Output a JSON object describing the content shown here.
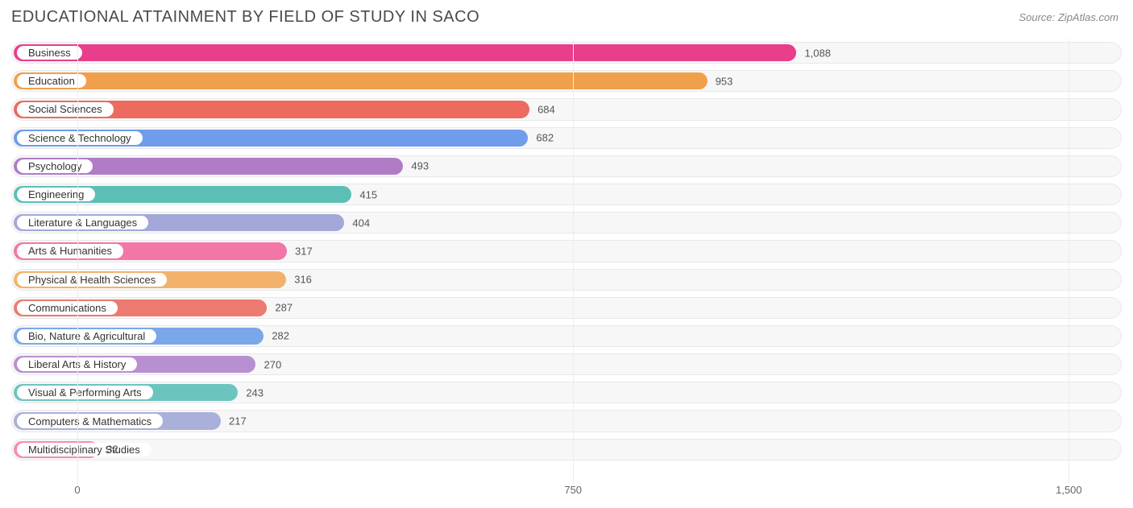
{
  "title": "EDUCATIONAL ATTAINMENT BY FIELD OF STUDY IN SACO",
  "source": "Source: ZipAtlas.com",
  "chart": {
    "type": "bar",
    "orientation": "horizontal",
    "x_min": -100,
    "x_max": 1580,
    "x_ticks": [
      0,
      750,
      1500
    ],
    "x_tick_labels": [
      "0",
      "750",
      "1,500"
    ],
    "track_bg": "#f7f7f7",
    "track_border": "#e8e8e8",
    "value_color": "#555555",
    "title_color": "#4a4a4a",
    "source_color": "#888888",
    "label_fontsize": 13,
    "value_fontsize": 13,
    "title_fontsize": 20,
    "bars": [
      {
        "label": "Business",
        "value": 1088,
        "value_label": "1,088",
        "color": "#e83e8c"
      },
      {
        "label": "Education",
        "value": 953,
        "value_label": "953",
        "color": "#f0a04b"
      },
      {
        "label": "Social Sciences",
        "value": 684,
        "value_label": "684",
        "color": "#ec6a5e"
      },
      {
        "label": "Science & Technology",
        "value": 682,
        "value_label": "682",
        "color": "#6f9ceb"
      },
      {
        "label": "Psychology",
        "value": 493,
        "value_label": "493",
        "color": "#b07cc6"
      },
      {
        "label": "Engineering",
        "value": 415,
        "value_label": "415",
        "color": "#5cbfb6"
      },
      {
        "label": "Literature & Languages",
        "value": 404,
        "value_label": "404",
        "color": "#a3a8d9"
      },
      {
        "label": "Arts & Humanities",
        "value": 317,
        "value_label": "317",
        "color": "#f277a6"
      },
      {
        "label": "Physical & Health Sciences",
        "value": 316,
        "value_label": "316",
        "color": "#f3b26b"
      },
      {
        "label": "Communications",
        "value": 287,
        "value_label": "287",
        "color": "#ec7a70"
      },
      {
        "label": "Bio, Nature & Agricultural",
        "value": 282,
        "value_label": "282",
        "color": "#7aa7e8"
      },
      {
        "label": "Liberal Arts & History",
        "value": 270,
        "value_label": "270",
        "color": "#b88fd0"
      },
      {
        "label": "Visual & Performing Arts",
        "value": 243,
        "value_label": "243",
        "color": "#6cc4bf"
      },
      {
        "label": "Computers & Mathematics",
        "value": 217,
        "value_label": "217",
        "color": "#a9b0da"
      },
      {
        "label": "Multidisciplinary Studies",
        "value": 32,
        "value_label": "32",
        "color": "#f48fb1"
      }
    ]
  }
}
